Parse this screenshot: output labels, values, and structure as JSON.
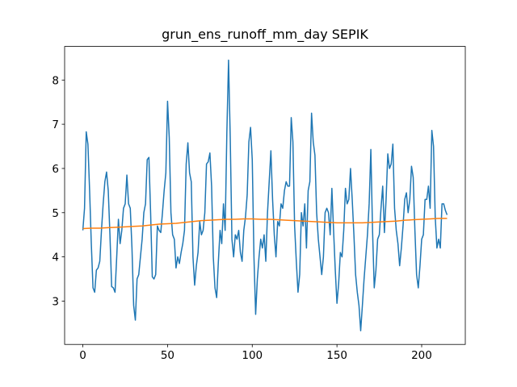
{
  "chart_data": {
    "type": "line",
    "title": "grun_ens_runoff_mm_day SEPIK",
    "xlim": [
      -10.75,
      225.75
    ],
    "ylim": [
      2.02,
      8.76
    ],
    "xticks": [
      0,
      50,
      100,
      150,
      200
    ],
    "yticks": [
      3,
      4,
      5,
      6,
      7,
      8
    ],
    "series": [
      {
        "color": "#1f77b4",
        "x": [
          0,
          1,
          2,
          3,
          4,
          5,
          6,
          7,
          8,
          9,
          10,
          11,
          12,
          13,
          14,
          15,
          16,
          17,
          18,
          19,
          20,
          21,
          22,
          23,
          24,
          25,
          26,
          27,
          28,
          29,
          30,
          31,
          32,
          33,
          34,
          35,
          36,
          37,
          38,
          39,
          40,
          41,
          42,
          43,
          44,
          45,
          46,
          47,
          48,
          49,
          50,
          51,
          52,
          53,
          54,
          55,
          56,
          57,
          58,
          59,
          60,
          61,
          62,
          63,
          64,
          65,
          66,
          67,
          68,
          69,
          70,
          71,
          72,
          73,
          74,
          75,
          76,
          77,
          78,
          79,
          80,
          81,
          82,
          83,
          84,
          85,
          86,
          87,
          88,
          89,
          90,
          91,
          92,
          93,
          94,
          95,
          96,
          97,
          98,
          99,
          100,
          101,
          102,
          103,
          104,
          105,
          106,
          107,
          108,
          109,
          110,
          111,
          112,
          113,
          114,
          115,
          116,
          117,
          118,
          119,
          120,
          121,
          122,
          123,
          124,
          125,
          126,
          127,
          128,
          129,
          130,
          131,
          132,
          133,
          134,
          135,
          136,
          137,
          138,
          139,
          140,
          141,
          142,
          143,
          144,
          145,
          146,
          147,
          148,
          149,
          150,
          151,
          152,
          153,
          154,
          155,
          156,
          157,
          158,
          159,
          160,
          161,
          162,
          163,
          164,
          165,
          166,
          167,
          168,
          169,
          170,
          171,
          172,
          173,
          174,
          175,
          176,
          177,
          178,
          179,
          180,
          181,
          182,
          183,
          184,
          185,
          186,
          187,
          188,
          189,
          190,
          191,
          192,
          193,
          194,
          195,
          196,
          197,
          198,
          199,
          200,
          201,
          202,
          203,
          204,
          205,
          206,
          207,
          208,
          209,
          210,
          211,
          212,
          213,
          214,
          215
        ],
        "values": [
          4.6,
          5.1,
          6.83,
          6.55,
          5.5,
          4.3,
          3.3,
          3.2,
          3.7,
          3.75,
          3.9,
          4.6,
          5.2,
          5.7,
          5.92,
          5.5,
          4.5,
          3.33,
          3.3,
          3.2,
          4.0,
          4.85,
          4.3,
          4.6,
          5.1,
          5.2,
          5.85,
          5.2,
          5.1,
          4.2,
          2.9,
          2.57,
          3.5,
          3.6,
          4.0,
          4.4,
          5.0,
          5.2,
          6.2,
          6.25,
          5.0,
          3.55,
          3.5,
          3.6,
          4.7,
          4.6,
          4.55,
          5.0,
          5.5,
          5.9,
          7.52,
          6.7,
          5.0,
          4.5,
          4.4,
          3.75,
          4.0,
          3.85,
          4.1,
          4.3,
          4.6,
          6.1,
          6.58,
          5.9,
          5.7,
          4.0,
          3.36,
          3.8,
          4.1,
          4.8,
          4.5,
          4.6,
          5.0,
          6.1,
          6.15,
          6.35,
          5.6,
          4.0,
          3.3,
          3.08,
          3.9,
          4.6,
          4.3,
          5.2,
          4.6,
          6.8,
          8.45,
          6.7,
          4.4,
          4.0,
          4.5,
          4.4,
          4.6,
          4.1,
          3.9,
          4.6,
          4.9,
          5.4,
          6.6,
          6.93,
          6.2,
          4.0,
          2.7,
          3.5,
          4.0,
          4.4,
          4.2,
          4.5,
          3.9,
          5.0,
          5.7,
          6.4,
          5.3,
          4.5,
          4.0,
          4.8,
          4.7,
          5.2,
          5.1,
          5.5,
          5.7,
          5.6,
          5.6,
          7.15,
          6.6,
          4.7,
          3.9,
          3.2,
          3.6,
          5.0,
          4.7,
          5.2,
          4.2,
          5.5,
          5.7,
          7.25,
          6.6,
          6.3,
          5.0,
          4.4,
          4.0,
          3.6,
          4.0,
          5.0,
          5.1,
          5.0,
          4.5,
          5.55,
          4.6,
          3.7,
          2.95,
          3.4,
          4.1,
          4.0,
          4.6,
          5.55,
          5.2,
          5.3,
          6.0,
          5.3,
          4.5,
          3.6,
          3.2,
          2.9,
          2.33,
          2.9,
          3.5,
          4.0,
          4.5,
          5.2,
          6.43,
          4.6,
          3.3,
          3.7,
          4.4,
          4.5,
          5.1,
          5.6,
          4.55,
          5.3,
          6.33,
          6.0,
          6.1,
          6.55,
          5.1,
          4.6,
          4.3,
          3.8,
          4.2,
          4.7,
          5.3,
          5.45,
          5.0,
          5.3,
          6.05,
          5.8,
          4.6,
          3.6,
          3.3,
          3.8,
          4.4,
          4.5,
          5.3,
          5.3,
          5.6,
          5.1,
          6.86,
          6.5,
          4.9,
          4.2,
          4.4,
          4.2,
          5.2,
          5.2,
          5.05,
          4.95
        ]
      },
      {
        "color": "#ff7f0e",
        "x": [
          0,
          5,
          10,
          15,
          20,
          25,
          30,
          35,
          40,
          45,
          50,
          55,
          60,
          65,
          70,
          75,
          80,
          85,
          90,
          95,
          100,
          105,
          110,
          115,
          120,
          125,
          130,
          135,
          140,
          145,
          150,
          155,
          160,
          165,
          170,
          175,
          180,
          185,
          190,
          195,
          200,
          205,
          210,
          215
        ],
        "values": [
          4.64,
          4.65,
          4.65,
          4.66,
          4.67,
          4.68,
          4.69,
          4.7,
          4.72,
          4.74,
          4.75,
          4.76,
          4.78,
          4.8,
          4.82,
          4.83,
          4.84,
          4.85,
          4.85,
          4.86,
          4.86,
          4.85,
          4.85,
          4.84,
          4.83,
          4.82,
          4.81,
          4.8,
          4.79,
          4.78,
          4.77,
          4.77,
          4.77,
          4.77,
          4.78,
          4.79,
          4.8,
          4.81,
          4.83,
          4.84,
          4.85,
          4.86,
          4.87,
          4.87
        ]
      }
    ]
  }
}
